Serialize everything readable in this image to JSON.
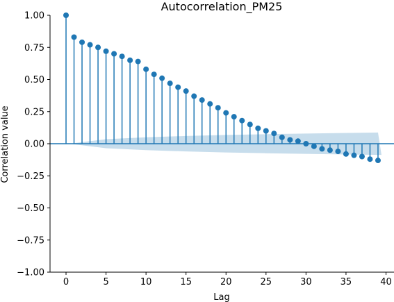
{
  "chart_data": {
    "type": "stem",
    "title": "Autocorrelation_PM25",
    "xlabel": "Lag",
    "ylabel": "Correlation value",
    "xlim": [
      -2,
      41
    ],
    "ylim": [
      -1.0,
      1.0
    ],
    "x_ticks": [
      0,
      5,
      10,
      15,
      20,
      25,
      30,
      35,
      40
    ],
    "y_ticks": [
      -1.0,
      -0.75,
      -0.5,
      -0.25,
      0.0,
      0.25,
      0.5,
      0.75,
      1.0
    ],
    "x_tick_labels": [
      "0",
      "5",
      "10",
      "15",
      "20",
      "25",
      "30",
      "35",
      "40"
    ],
    "y_tick_labels": [
      "−1.00",
      "−0.75",
      "−0.50",
      "−0.25",
      "0.00",
      "0.25",
      "0.50",
      "0.75",
      "1.00"
    ],
    "grid": false,
    "series": [
      {
        "lags": [
          0,
          1,
          2,
          3,
          4,
          5,
          6,
          7,
          8,
          9,
          10,
          11,
          12,
          13,
          14,
          15,
          16,
          17,
          18,
          19,
          20,
          21,
          22,
          23,
          24,
          25,
          26,
          27,
          28,
          29,
          30,
          31,
          32,
          33,
          34,
          35,
          36,
          37,
          38,
          39
        ],
        "values": [
          1.0,
          0.83,
          0.79,
          0.77,
          0.75,
          0.72,
          0.7,
          0.68,
          0.65,
          0.64,
          0.58,
          0.54,
          0.51,
          0.47,
          0.44,
          0.41,
          0.37,
          0.34,
          0.31,
          0.28,
          0.24,
          0.21,
          0.18,
          0.15,
          0.12,
          0.1,
          0.08,
          0.05,
          0.03,
          0.02,
          0.0,
          -0.02,
          -0.04,
          -0.05,
          -0.06,
          -0.08,
          -0.09,
          -0.1,
          -0.12,
          -0.13
        ]
      }
    ],
    "confidence_band": {
      "lags": [
        0,
        5,
        10,
        15,
        20,
        25,
        30,
        35,
        39
      ],
      "upper": [
        0.0,
        0.035,
        0.05,
        0.06,
        0.068,
        0.074,
        0.079,
        0.084,
        0.087
      ],
      "lower": [
        0.0,
        -0.035,
        -0.05,
        -0.06,
        -0.068,
        -0.074,
        -0.079,
        -0.084,
        -0.087
      ]
    },
    "colors": {
      "stem": "#1f77b4",
      "band": "#1f77b4",
      "axis": "#000000"
    }
  }
}
